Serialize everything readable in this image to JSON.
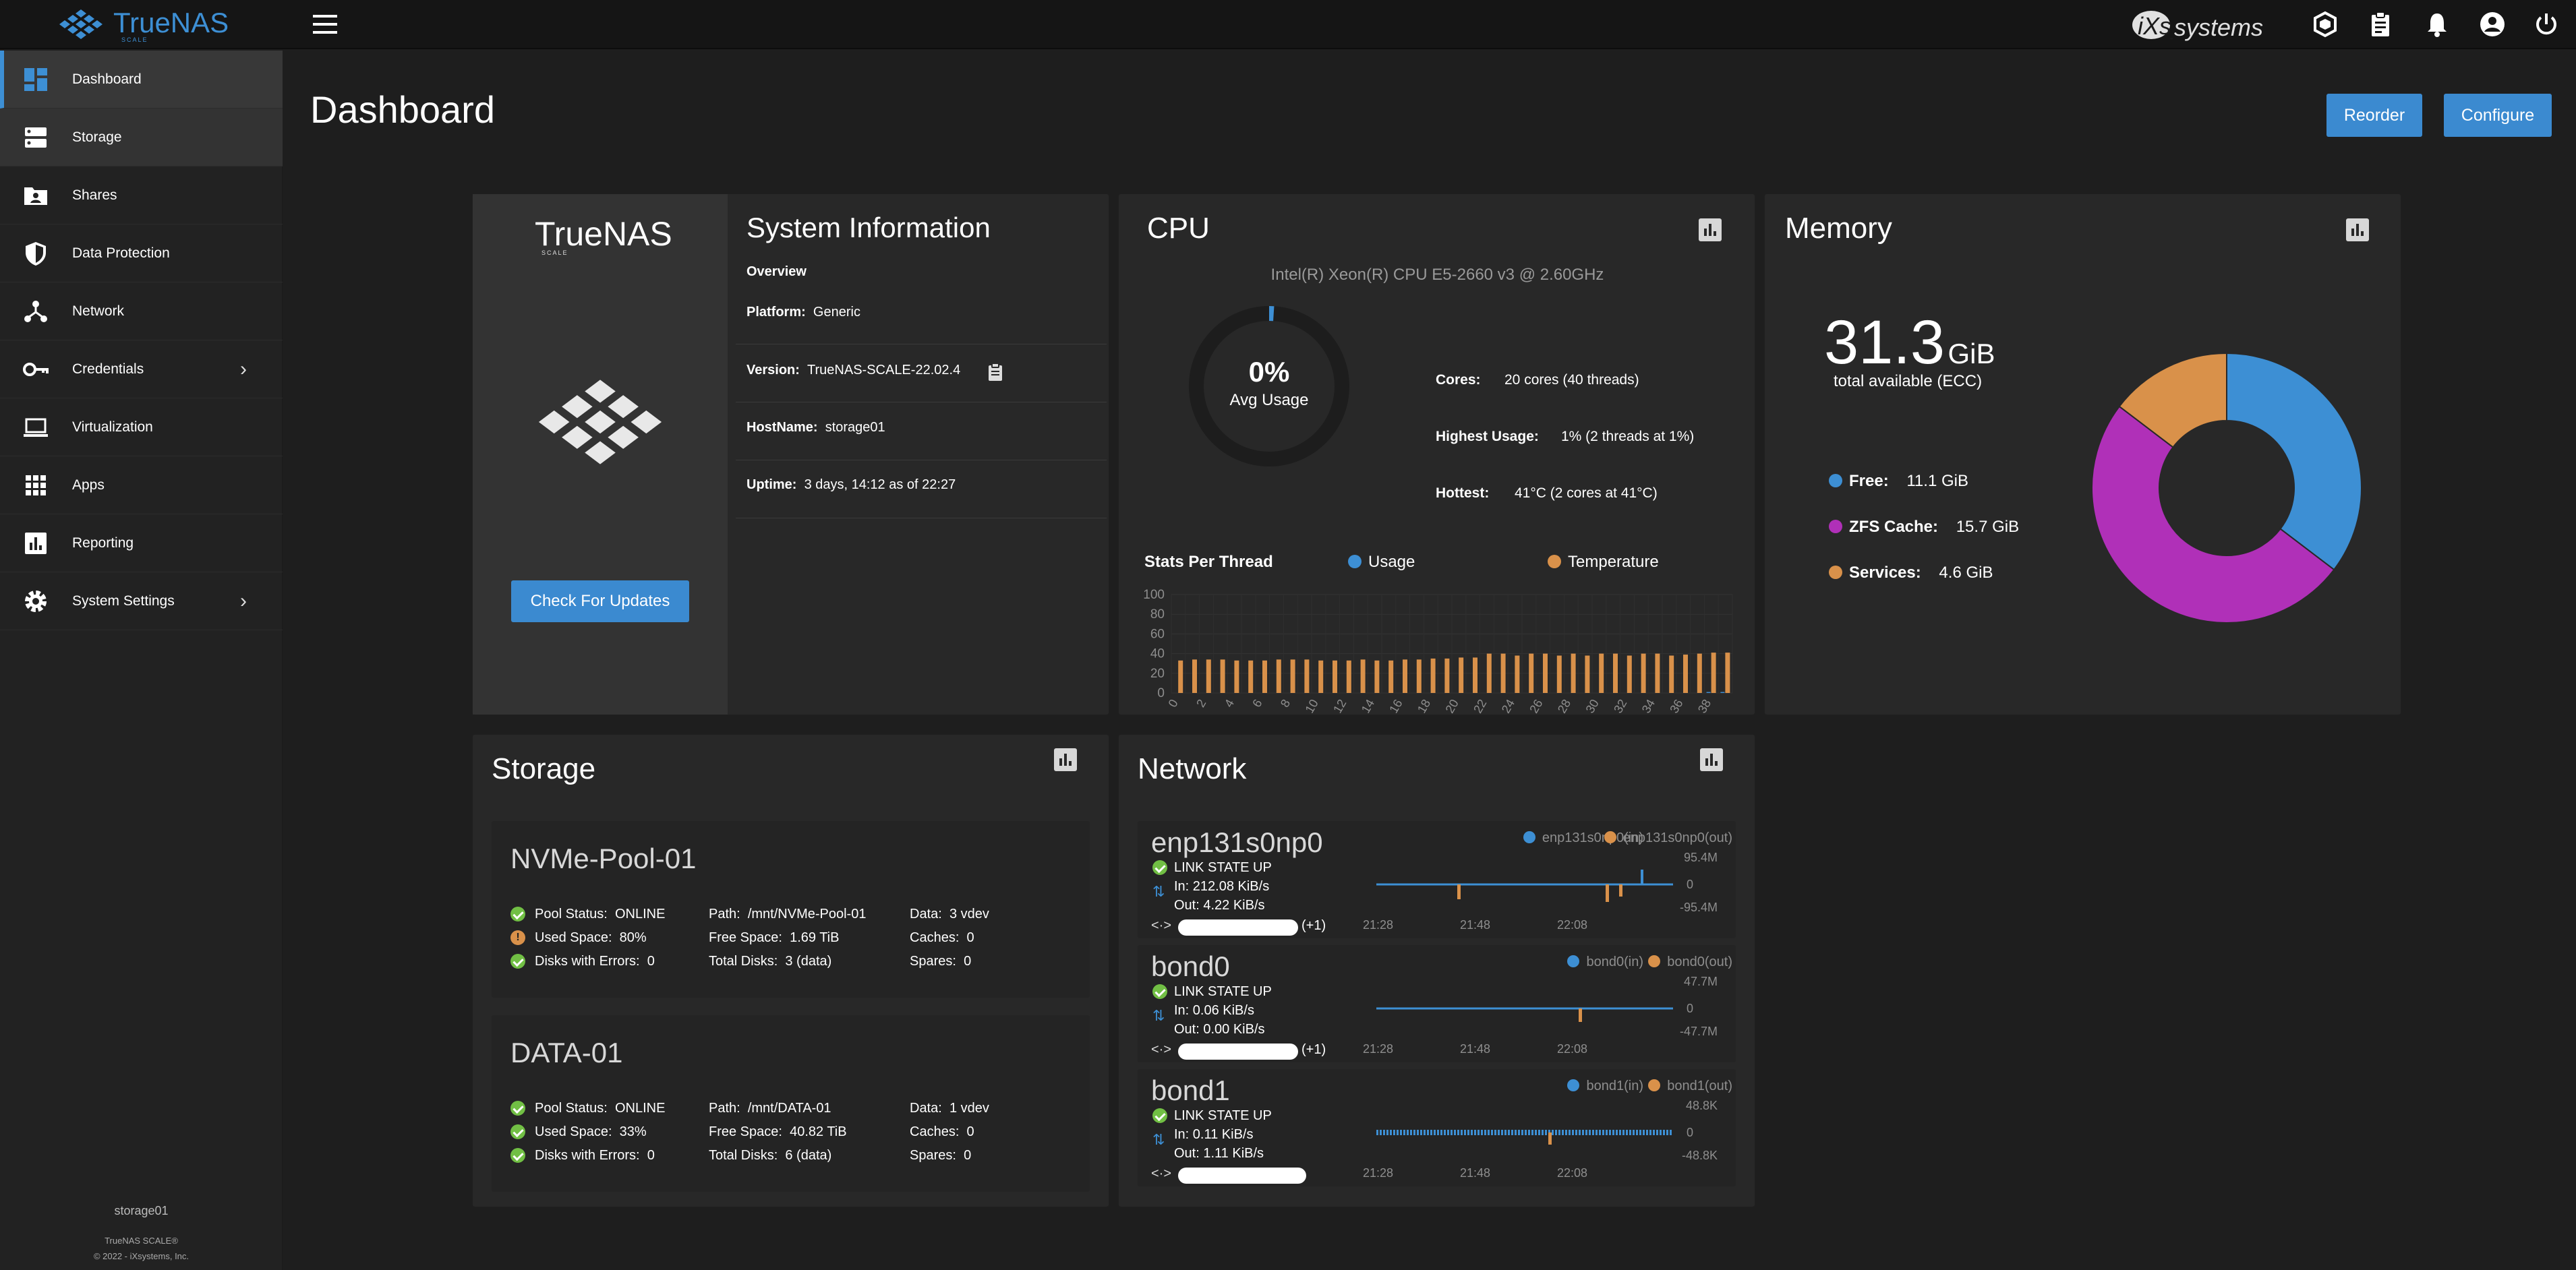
{
  "topbar": {
    "brand": "TrueNAS",
    "brand_sub": "SCALE",
    "ix_logo": "iXsystems",
    "icons": [
      "truecommand-icon",
      "clipboard-icon",
      "bell-icon",
      "account-icon",
      "power-icon"
    ]
  },
  "sidebar": {
    "items": [
      {
        "label": "Dashboard",
        "icon": "dashboard-icon"
      },
      {
        "label": "Storage",
        "icon": "storage-icon"
      },
      {
        "label": "Shares",
        "icon": "shares-icon"
      },
      {
        "label": "Data Protection",
        "icon": "shield-icon"
      },
      {
        "label": "Network",
        "icon": "network-icon"
      },
      {
        "label": "Credentials",
        "icon": "key-icon",
        "chevron": true
      },
      {
        "label": "Virtualization",
        "icon": "laptop-icon"
      },
      {
        "label": "Apps",
        "icon": "apps-icon"
      },
      {
        "label": "Reporting",
        "icon": "reporting-icon"
      },
      {
        "label": "System Settings",
        "icon": "gear-icon",
        "chevron": true
      }
    ],
    "hostname": "storage01",
    "footer_line1": "TrueNAS SCALE®",
    "footer_line2": "© 2022 - iXsystems, Inc."
  },
  "page": {
    "title": "Dashboard",
    "reorder": "Reorder",
    "configure": "Configure"
  },
  "sysinfo": {
    "logo_text": "TrueNAS",
    "logo_sub": "SCALE",
    "title": "System Information",
    "overview": "Overview",
    "platform_label": "Platform:",
    "platform": "Generic",
    "version_label": "Version:",
    "version": "TrueNAS-SCALE-22.02.4",
    "hostname_label": "HostName:",
    "hostname": "storage01",
    "uptime_label": "Uptime:",
    "uptime": "3 days, 14:12 as of 22:27",
    "check_updates": "Check For Updates"
  },
  "cpu": {
    "title": "CPU",
    "model": "Intel(R) Xeon(R) CPU E5-2660 v3 @ 2.60GHz",
    "usage_pct": "0%",
    "usage_label": "Avg Usage",
    "usage_value": 0.01,
    "cores_label": "Cores:",
    "cores": "20 cores  (40 threads)",
    "highest_label": "Highest Usage:",
    "highest": "1%  (2 threads at 1%)",
    "hottest_label": "Hottest:",
    "hottest": "41°C  (2 cores at 41°C)",
    "stats_title": "Stats Per Thread",
    "legend_usage": "Usage",
    "legend_temp": "Temperature",
    "colors": {
      "usage": "#3d8fd4",
      "temperature": "#d9914a"
    }
  },
  "memory": {
    "title": "Memory",
    "total": "31.3",
    "unit": "GiB",
    "total_label": "total available (ECC)",
    "free_label": "Free:",
    "free": "11.1 GiB",
    "zfs_label": "ZFS Cache:",
    "zfs": "15.7 GiB",
    "services_label": "Services:",
    "services": "4.6 GiB",
    "colors": {
      "free": "#3d8fd4",
      "zfs": "#b030b8",
      "services": "#d9914a"
    }
  },
  "storage": {
    "title": "Storage",
    "pools": [
      {
        "name": "NVMe-Pool-01",
        "status_label": "Pool Status:",
        "status": "ONLINE",
        "used_label": "Used Space:",
        "used": "80%",
        "errors_label": "Disks with Errors:",
        "errors": "0",
        "path_label": "Path:",
        "path": "/mnt/NVMe-Pool-01",
        "free_label": "Free Space:",
        "free": "1.69 TiB",
        "disks_label": "Total Disks:",
        "disks": "3 (data)",
        "data_label": "Data:",
        "data": "3 vdev",
        "caches_label": "Caches:",
        "caches": "0",
        "spares_label": "Spares:",
        "spares": "0"
      },
      {
        "name": "DATA-01",
        "status_label": "Pool Status:",
        "status": "ONLINE",
        "used_label": "Used Space:",
        "used": "33%",
        "errors_label": "Disks with Errors:",
        "errors": "0",
        "path_label": "Path:",
        "path": "/mnt/DATA-01",
        "free_label": "Free Space:",
        "free": "40.82 TiB",
        "disks_label": "Total Disks:",
        "disks": "6 (data)",
        "data_label": "Data:",
        "data": "1 vdev",
        "caches_label": "Caches:",
        "caches": "0",
        "spares_label": "Spares:",
        "spares": "0"
      }
    ]
  },
  "network": {
    "title": "Network",
    "interfaces": [
      {
        "name": "enp131s0np0",
        "state": "LINK STATE UP",
        "in": "In:  212.08 KiB/s",
        "out": "Out:  4.22 KiB/s",
        "alias_suffix": "(+1)",
        "legend_in": "enp131s0np0(in)",
        "legend_out": "enp131s0np0(out)",
        "ymax": "95.4M",
        "yzero": "0",
        "ymin": "-95.4M",
        "x1": "21:28",
        "x2": "21:48",
        "x3": "22:08"
      },
      {
        "name": "bond0",
        "state": "LINK STATE UP",
        "in": "In:  0.06 KiB/s",
        "out": "Out:  0.00 KiB/s",
        "alias_suffix": "(+1)",
        "legend_in": "bond0(in)",
        "legend_out": "bond0(out)",
        "ymax": "47.7M",
        "yzero": "0",
        "ymin": "-47.7M",
        "x1": "21:28",
        "x2": "21:48",
        "x3": "22:08"
      },
      {
        "name": "bond1",
        "state": "LINK STATE UP",
        "in": "In:  0.11 KiB/s",
        "out": "Out:  1.11 KiB/s",
        "alias_suffix": "",
        "legend_in": "bond1(in)",
        "legend_out": "bond1(out)",
        "ymax": "48.8K",
        "yzero": "0",
        "ymin": "-48.8K",
        "x1": "21:28",
        "x2": "21:48",
        "x3": "22:08"
      }
    ]
  },
  "chart_data": [
    {
      "type": "bar",
      "title": "Stats Per Thread",
      "ylim": [
        0,
        100
      ],
      "yticks": [
        0,
        20,
        40,
        60,
        80,
        100
      ],
      "categories": [
        "0",
        "1",
        "2",
        "3",
        "4",
        "5",
        "6",
        "7",
        "8",
        "9",
        "10",
        "11",
        "12",
        "13",
        "14",
        "15",
        "16",
        "17",
        "18",
        "19",
        "20",
        "21",
        "22",
        "23",
        "24",
        "25",
        "26",
        "27",
        "28",
        "29",
        "30",
        "31",
        "32",
        "33",
        "34",
        "35",
        "36",
        "37",
        "38",
        "39"
      ],
      "xtick_labels": [
        "0",
        "2",
        "4",
        "6",
        "8",
        "10",
        "12",
        "14",
        "16",
        "18",
        "20",
        "22",
        "24",
        "26",
        "28",
        "30",
        "32",
        "34",
        "36",
        "38"
      ],
      "series": [
        {
          "name": "Usage",
          "values": [
            0,
            0,
            0,
            0,
            0,
            0,
            0,
            0,
            0,
            0,
            0,
            0,
            0,
            0,
            0,
            0,
            0,
            0,
            0,
            0,
            0,
            0,
            0,
            0,
            0,
            0,
            0,
            0,
            0,
            0,
            0,
            0,
            0,
            0,
            0,
            0,
            0,
            0,
            1,
            1
          ]
        },
        {
          "name": "Temperature",
          "values": [
            33,
            34,
            34,
            34,
            33,
            33,
            33,
            34,
            34,
            34,
            33,
            33,
            33,
            34,
            33,
            33,
            34,
            34,
            35,
            35,
            36,
            36,
            40,
            40,
            38,
            40,
            40,
            38,
            40,
            38,
            40,
            40,
            38,
            40,
            40,
            38,
            39,
            40,
            41,
            41
          ]
        }
      ]
    },
    {
      "type": "pie",
      "title": "Memory",
      "categories": [
        "Free",
        "ZFS Cache",
        "Services"
      ],
      "values": [
        11.1,
        15.7,
        4.6
      ]
    }
  ]
}
